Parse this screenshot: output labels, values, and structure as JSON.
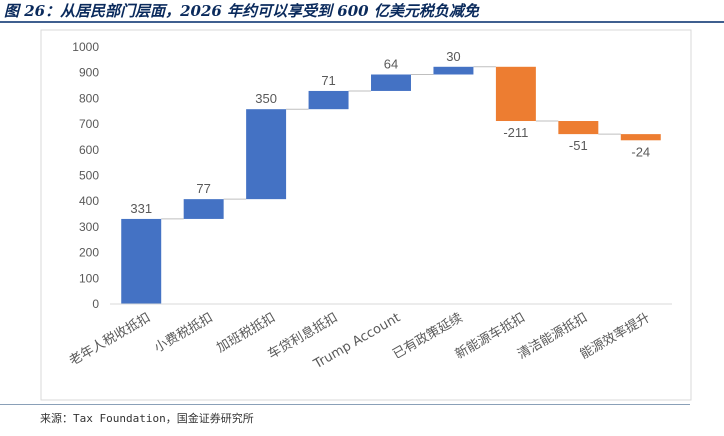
{
  "title": "图 26：从居民部门层面，2026 年约可以享受到 600 亿美元税负减免",
  "source": "来源：Tax Foundation，国金证券研究所",
  "chart_data": {
    "type": "bar",
    "subtype": "waterfall",
    "categories": [
      "老年人税收抵扣",
      "小费税抵扣",
      "加班税抵扣",
      "车贷利息抵扣",
      "Trump Account",
      "已有政策延续",
      "新能源车抵扣",
      "清洁能源抵扣",
      "能源效率提升"
    ],
    "values": [
      331,
      77,
      350,
      71,
      64,
      30,
      -211,
      -51,
      -24
    ],
    "data_labels": [
      "331",
      "77",
      "350",
      "71",
      "64",
      "30",
      "-211",
      "-51",
      "-24"
    ],
    "y_ticks": [
      "0",
      "100",
      "200",
      "300",
      "400",
      "500",
      "600",
      "700",
      "800",
      "900",
      "1000"
    ],
    "ylim": [
      0,
      1000
    ],
    "grid": false,
    "legend": "none",
    "colors": {
      "positive": "#4472C4",
      "negative": "#ED7D31",
      "connector": "#BFBFBF",
      "axis": "#D9D9D9",
      "text": "#595959"
    }
  }
}
